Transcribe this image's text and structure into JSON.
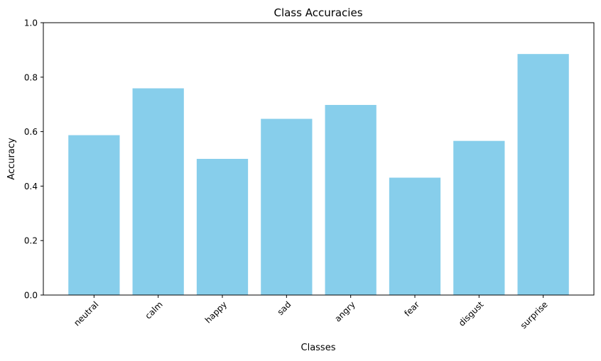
{
  "chart_data": {
    "type": "bar",
    "title": "Class Accuracies",
    "xlabel": "Classes",
    "ylabel": "Accuracy",
    "categories": [
      "neutral",
      "calm",
      "happy",
      "sad",
      "angry",
      "fear",
      "disgust",
      "surprise"
    ],
    "values": [
      0.587,
      0.759,
      0.5,
      0.647,
      0.698,
      0.431,
      0.566,
      0.885
    ],
    "ylim": [
      0,
      1.0
    ],
    "yticks": [
      "0.0",
      "0.2",
      "0.4",
      "0.6",
      "0.8",
      "1.0"
    ],
    "bar_color": "#87ceeb",
    "grid": false,
    "legend": false
  }
}
